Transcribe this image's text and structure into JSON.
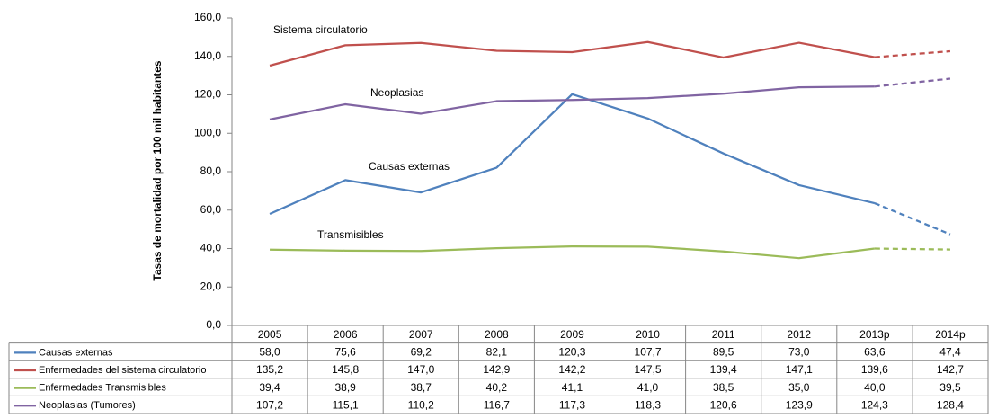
{
  "chart_data": {
    "type": "line",
    "y_label": "Tasas de mortalidad por 100 mil habitantes",
    "categories": [
      "2005",
      "2006",
      "2007",
      "2008",
      "2009",
      "2010",
      "2011",
      "2012",
      "2013p",
      "2014p"
    ],
    "dash_from_index": 8,
    "ylim": [
      0,
      160
    ],
    "yticks": [
      {
        "value": 0,
        "label": "0,0"
      },
      {
        "value": 20,
        "label": "20,0"
      },
      {
        "value": 40,
        "label": "40,0"
      },
      {
        "value": 60,
        "label": "60,0"
      },
      {
        "value": 80,
        "label": "80,0"
      },
      {
        "value": 100,
        "label": "100,0"
      },
      {
        "value": 120,
        "label": "120,0"
      },
      {
        "value": 140,
        "label": "140,0"
      },
      {
        "value": 160,
        "label": "160,0"
      }
    ],
    "grid": false,
    "annotations": [
      "Sistema circulatorio",
      "Neoplasias",
      "Causas externas",
      "Transmisibles"
    ],
    "series": [
      {
        "name": "Causas externas",
        "color": "#4f81bd",
        "values": [
          58.0,
          75.6,
          69.2,
          82.1,
          120.3,
          107.7,
          89.5,
          73.0,
          63.6,
          47.4
        ],
        "value_labels": [
          "58,0",
          "75,6",
          "69,2",
          "82,1",
          "120,3",
          "107,7",
          "89,5",
          "73,0",
          "63,6",
          "47,4"
        ]
      },
      {
        "name": "Enfermedades del sistema circulatorio",
        "color": "#c0504d",
        "values": [
          135.2,
          145.8,
          147.0,
          142.9,
          142.2,
          147.5,
          139.4,
          147.1,
          139.6,
          142.7
        ],
        "value_labels": [
          "135,2",
          "145,8",
          "147,0",
          "142,9",
          "142,2",
          "147,5",
          "139,4",
          "147,1",
          "139,6",
          "142,7"
        ]
      },
      {
        "name": "Enfermedades Transmisibles",
        "color": "#9bbb59",
        "values": [
          39.4,
          38.9,
          38.7,
          40.2,
          41.1,
          41.0,
          38.5,
          35.0,
          40.0,
          39.5
        ],
        "value_labels": [
          "39,4",
          "38,9",
          "38,7",
          "40,2",
          "41,1",
          "41,0",
          "38,5",
          "35,0",
          "40,0",
          "39,5"
        ]
      },
      {
        "name": "Neoplasias (Tumores)",
        "color": "#8064a2",
        "values": [
          107.2,
          115.1,
          110.2,
          116.7,
          117.3,
          118.3,
          120.6,
          123.9,
          124.3,
          128.4
        ],
        "value_labels": [
          "107,2",
          "115,1",
          "110,2",
          "116,7",
          "117,3",
          "118,3",
          "120,6",
          "123,9",
          "124,3",
          "128,4"
        ]
      }
    ]
  }
}
